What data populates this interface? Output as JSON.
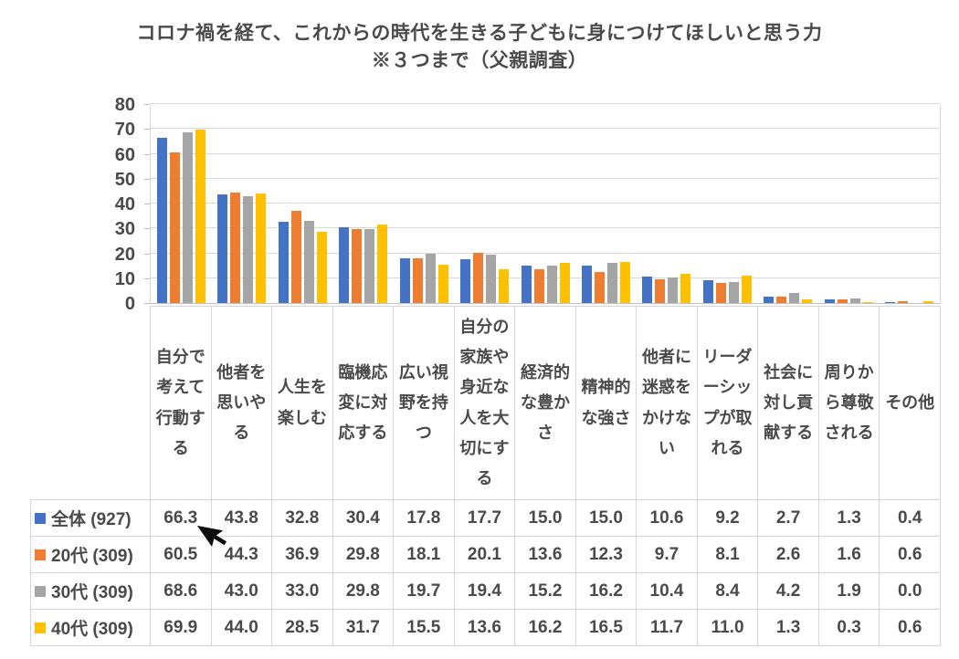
{
  "title": {
    "line1": "コロナ禍を経て、これからの時代を生きる子どもに身につけてほしいと思う力",
    "line2": "※３つまで（父親調査）"
  },
  "chart_data": {
    "type": "bar",
    "title": "コロナ禍を経て、これからの時代を生きる子どもに身につけてほしいと思う力",
    "subtitle": "※３つまで（父親調査）",
    "categories": [
      "自分で考えて行動する",
      "他者を思いやる",
      "人生を楽しむ",
      "臨機応変に対応する",
      "広い視野を持つ",
      "自分の家族や身近な人を大切にする",
      "経済的な豊かさ",
      "精神的な強さ",
      "他者に迷惑をかけない",
      "リーダーシップが取れる",
      "社会に対し貢献する",
      "周りから尊敬される",
      "その他"
    ],
    "series": [
      {
        "name": "全体 (927)",
        "color": "#4472C4",
        "values": [
          66.3,
          43.8,
          32.8,
          30.4,
          17.8,
          17.7,
          15.0,
          15.0,
          10.6,
          9.2,
          2.7,
          1.3,
          0.4
        ]
      },
      {
        "name": "20代 (309)",
        "color": "#ED7D31",
        "values": [
          60.5,
          44.3,
          36.9,
          29.8,
          18.1,
          20.1,
          13.6,
          12.3,
          9.7,
          8.1,
          2.6,
          1.6,
          0.6
        ]
      },
      {
        "name": "30代 (309)",
        "color": "#A5A5A5",
        "values": [
          68.6,
          43.0,
          33.0,
          29.8,
          19.7,
          19.4,
          15.2,
          16.2,
          10.4,
          8.4,
          4.2,
          1.9,
          0.0
        ]
      },
      {
        "name": "40代 (309)",
        "color": "#FFC000",
        "values": [
          69.9,
          44.0,
          28.5,
          31.7,
          15.5,
          13.6,
          16.2,
          16.5,
          11.7,
          11.0,
          1.3,
          0.3,
          0.6
        ]
      }
    ],
    "ylim": [
      0,
      80
    ],
    "yticks": [
      0,
      10,
      20,
      30,
      40,
      50,
      60,
      70,
      80
    ],
    "grid": true,
    "legend_position": "data-table-left-column",
    "value_format": "one-decimal",
    "colors": {
      "gridline": "#D9D9D9",
      "axis": "#BFBFBF",
      "text": "#4A4A4A",
      "table_border": "#D6D6D6"
    }
  },
  "overlay": {
    "cursor": "black-arrow-pointer",
    "cursor_points_at_value": "66.3"
  }
}
